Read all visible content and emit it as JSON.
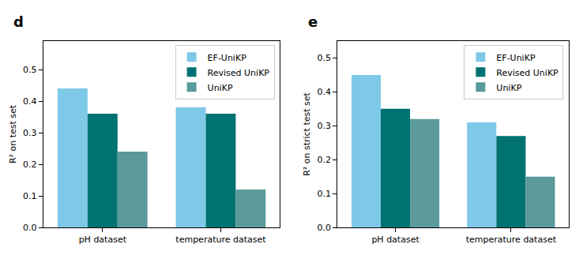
{
  "chart_data": [
    {
      "type": "bar",
      "title": "d",
      "y_label": "R² on test set",
      "categories": [
        "pH dataset",
        "temperature dataset"
      ],
      "series": [
        {
          "name": "EF-UniKP",
          "color": "#7ec8e8",
          "values": [
            0.44,
            0.38
          ]
        },
        {
          "name": "Revised UniKP",
          "color": "#007272",
          "values": [
            0.36,
            0.36
          ]
        },
        {
          "name": "UniKP",
          "color": "#5a9a9a",
          "values": [
            0.24,
            0.12
          ]
        }
      ],
      "ylim": [
        0,
        0.59
      ],
      "yticks": [
        {
          "value": 0,
          "label": "0.0"
        },
        0.1,
        0.2,
        0.3,
        0.4,
        0.5
      ],
      "grid": false,
      "legend": "upper right"
    },
    {
      "type": "bar",
      "title": "e",
      "y_label": "R² on strict test set",
      "categories": [
        "pH dataset",
        "temperature dataset"
      ],
      "series": [
        {
          "name": "EF-UniKP",
          "color": "#7ec8e8",
          "values": [
            0.45,
            0.31
          ]
        },
        {
          "name": "Revised UniKP",
          "color": "#007272",
          "values": [
            0.35,
            0.27
          ]
        },
        {
          "name": "UniKP",
          "color": "#5a9a9a",
          "values": [
            0.32,
            0.15
          ]
        }
      ],
      "ylim": [
        0,
        0.55
      ],
      "yticks": [
        {
          "value": 0,
          "label": "0.0"
        },
        0.1,
        0.2,
        0.3,
        0.4,
        0.5
      ],
      "grid": false,
      "legend": "upper right"
    }
  ]
}
